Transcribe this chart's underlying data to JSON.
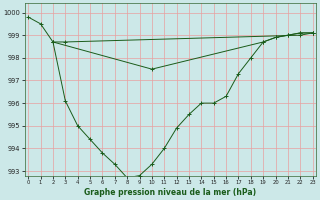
{
  "xlabel": "Graphe pression niveau de la mer (hPa)",
  "bg_color": "#cce8e8",
  "grid_color": "#e8a0a0",
  "line_color": "#1a5c1a",
  "line1": {
    "x": [
      0,
      1,
      2,
      3,
      4,
      5,
      6,
      7,
      8,
      9,
      10,
      11,
      12,
      13,
      14,
      15,
      16,
      17,
      18,
      19,
      20,
      21,
      22,
      23
    ],
    "y": [
      999.8,
      999.5,
      998.7,
      996.1,
      995.0,
      994.4,
      993.8,
      993.3,
      992.7,
      992.8,
      993.3,
      994.0,
      994.9,
      995.5,
      996.0,
      996.0,
      996.3,
      997.3,
      998.0,
      998.7,
      998.9,
      999.0,
      999.1,
      999.1
    ]
  },
  "line2": {
    "x": [
      2,
      3,
      22,
      23
    ],
    "y": [
      998.7,
      998.7,
      999.0,
      999.1
    ]
  },
  "line3": {
    "x": [
      2,
      10,
      19,
      20,
      21,
      22,
      23
    ],
    "y": [
      998.7,
      997.5,
      998.7,
      998.9,
      999.0,
      999.1,
      999.1
    ]
  },
  "ylim": [
    992.8,
    1000.4
  ],
  "yticks": [
    993,
    994,
    995,
    996,
    997,
    998,
    999,
    1000
  ],
  "xticks": [
    0,
    1,
    2,
    3,
    4,
    5,
    6,
    7,
    8,
    9,
    10,
    11,
    12,
    13,
    14,
    15,
    16,
    17,
    18,
    19,
    20,
    21,
    22,
    23
  ]
}
